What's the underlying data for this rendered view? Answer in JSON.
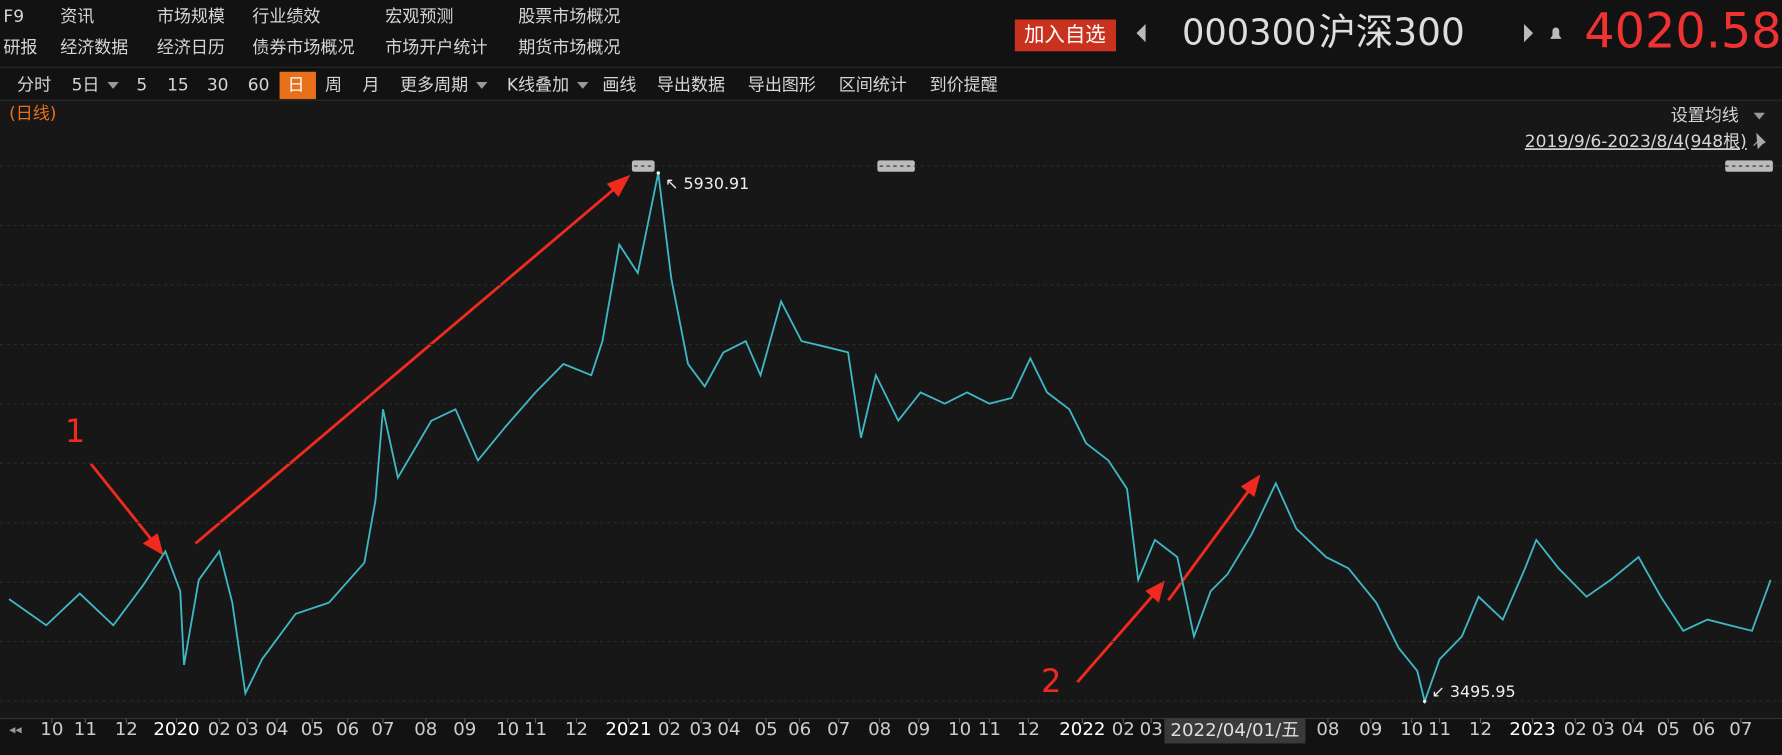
{
  "menu": {
    "rows": [
      [
        "F9",
        "资讯",
        "市场规模",
        "行业绩效",
        "宏观预测",
        "股票市场概况"
      ],
      [
        "研报",
        "经济数据",
        "经济日历",
        "债券市场概况",
        "市场开户统计",
        "期货市场概况"
      ]
    ]
  },
  "quote": {
    "add_button": "加入自选",
    "code": "000300",
    "name": "沪深300",
    "price": "4020.58"
  },
  "toolbar": {
    "items": [
      {
        "label": "分时"
      },
      {
        "label": "5日",
        "dropdown": true
      },
      {
        "label": "5"
      },
      {
        "label": "15"
      },
      {
        "label": "30"
      },
      {
        "label": "60"
      },
      {
        "label": "日",
        "selected": true
      },
      {
        "label": "周"
      },
      {
        "label": "月"
      },
      {
        "label": "更多周期",
        "dropdown": true
      },
      {
        "label": "K线叠加",
        "dropdown": true
      },
      {
        "label": "画线"
      },
      {
        "label": "导出数据"
      },
      {
        "label": "导出图形"
      },
      {
        "label": "区间统计"
      },
      {
        "label": "到价提醒"
      }
    ]
  },
  "period_label": "(日线)",
  "ma_setting": "设置均线",
  "range": "2019/9/6-2023/8/4(948根)",
  "chart_data": {
    "type": "line",
    "color": "#3fb8c6",
    "x": [
      0,
      20,
      38,
      56,
      72,
      84,
      92,
      94,
      102,
      113,
      120,
      127,
      136,
      154,
      172,
      191,
      197,
      201,
      209,
      227,
      240,
      252,
      267,
      283,
      298,
      313,
      319,
      328,
      338,
      349,
      356,
      365,
      374,
      384,
      396,
      404,
      415,
      426,
      439,
      451,
      458,
      466,
      478,
      490,
      503,
      515,
      527,
      539,
      549,
      558,
      570,
      579,
      591,
      601,
      607,
      616,
      628,
      637,
      646,
      655,
      668,
      681,
      692,
      708,
      720,
      735,
      747,
      757,
      761,
      769,
      781,
      790,
      803,
      815,
      821,
      833,
      848,
      861,
      876,
      888,
      900,
      913,
      925,
      937,
      947
    ],
    "values": [
      3967,
      3847,
      3993,
      3847,
      4030,
      4187,
      4004,
      3664,
      4056,
      4187,
      3951,
      3533,
      3690,
      3899,
      3951,
      4135,
      4423,
      4842,
      4527,
      4789,
      4842,
      4606,
      4763,
      4920,
      5051,
      4999,
      5156,
      5601,
      5470,
      5930.91,
      5444,
      5051,
      4947,
      5104,
      5156,
      4999,
      5339,
      5156,
      5130,
      5104,
      4711,
      4999,
      4790,
      4920,
      4868,
      4920,
      4868,
      4894,
      5077,
      4920,
      4842,
      4685,
      4606,
      4475,
      4056,
      4240,
      4161,
      3795,
      4004,
      4082,
      4266,
      4501,
      4292,
      4161,
      4109,
      3951,
      3742,
      3637,
      3495.95,
      3690,
      3795,
      3978,
      3873,
      4109,
      4240,
      4109,
      3978,
      4056,
      4161,
      3978,
      3821,
      3873,
      3847,
      3821,
      4056
    ],
    "xlim": [
      0,
      947
    ],
    "ylim": [
      3454,
      5994
    ],
    "xticks": [
      {
        "value": 23,
        "label": "10"
      },
      {
        "value": 41,
        "label": "11"
      },
      {
        "value": 63,
        "label": "12"
      },
      {
        "value": 90,
        "label": "2020"
      },
      {
        "value": 113,
        "label": "02"
      },
      {
        "value": 128,
        "label": "03"
      },
      {
        "value": 144,
        "label": "04"
      },
      {
        "value": 163,
        "label": "05"
      },
      {
        "value": 182,
        "label": "06"
      },
      {
        "value": 201,
        "label": "07"
      },
      {
        "value": 224,
        "label": "08"
      },
      {
        "value": 245,
        "label": "09"
      },
      {
        "value": 268,
        "label": "10"
      },
      {
        "value": 283,
        "label": "11"
      },
      {
        "value": 305,
        "label": "12"
      },
      {
        "value": 333,
        "label": "2021"
      },
      {
        "value": 355,
        "label": "02"
      },
      {
        "value": 372,
        "label": "03"
      },
      {
        "value": 387,
        "label": "04"
      },
      {
        "value": 407,
        "label": "05"
      },
      {
        "value": 425,
        "label": "06"
      },
      {
        "value": 446,
        "label": "07"
      },
      {
        "value": 468,
        "label": "08"
      },
      {
        "value": 489,
        "label": "09"
      },
      {
        "value": 511,
        "label": "10"
      },
      {
        "value": 527,
        "label": "11"
      },
      {
        "value": 548,
        "label": "12"
      },
      {
        "value": 577,
        "label": "2022"
      },
      {
        "value": 599,
        "label": "02"
      },
      {
        "value": 614,
        "label": "03"
      },
      {
        "value": 709,
        "label": "08"
      },
      {
        "value": 732,
        "label": "09"
      },
      {
        "value": 754,
        "label": "10"
      },
      {
        "value": 769,
        "label": "11"
      },
      {
        "value": 791,
        "label": "12"
      },
      {
        "value": 819,
        "label": "2023"
      },
      {
        "value": 842,
        "label": "02"
      },
      {
        "value": 857,
        "label": "03"
      },
      {
        "value": 873,
        "label": "04"
      },
      {
        "value": 892,
        "label": "05"
      },
      {
        "value": 911,
        "label": "06"
      },
      {
        "value": 931,
        "label": "07"
      }
    ],
    "hover_label": {
      "x": 659,
      "label": "2022/04/01/五"
    },
    "annotations": [
      {
        "x": 349,
        "value": 5930.91,
        "label": "↖ 5930.91"
      },
      {
        "x": 761,
        "value": 3495.95,
        "label": "↙ 3495.95"
      }
    ],
    "callouts": [
      "1",
      "2"
    ]
  }
}
